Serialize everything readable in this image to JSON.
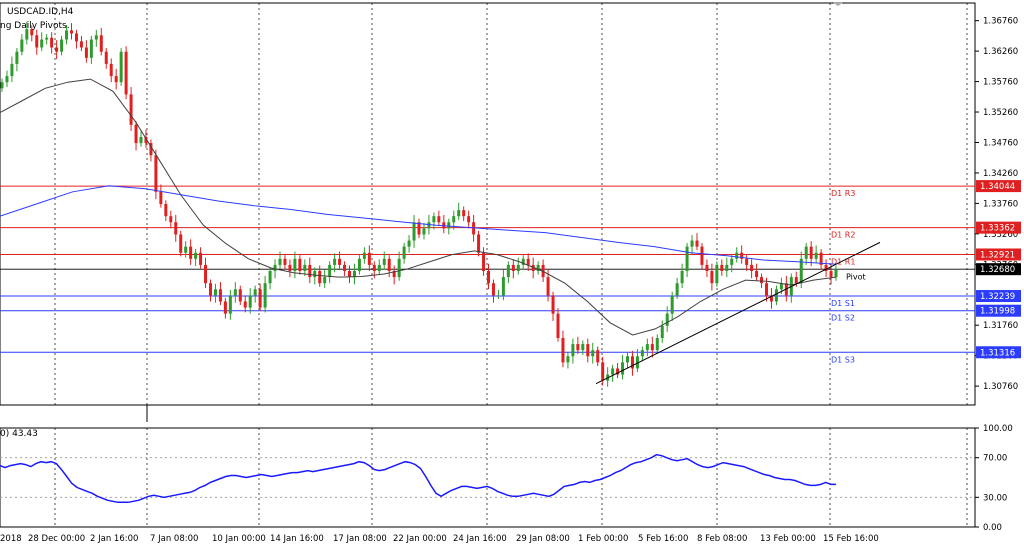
{
  "header": {
    "symbol": "USDCAD.ID,H4",
    "indicator": "ng Daily Pivots.",
    "rsi_label": "0) 43.43"
  },
  "colors": {
    "bull": "#2e9b2e",
    "bear": "#e02020",
    "ma_fast": "#404040",
    "ma_slow": "#2c3cff",
    "resistance": "#e02020",
    "support": "#2c3cff",
    "rsi": "#1a1aff",
    "current_price_bg": "#000000"
  },
  "chart_data": [
    {
      "type": "candlestick",
      "symbol": "USDCAD.ID",
      "timeframe": "H4",
      "y_ticks": [
        "1.36760",
        "1.36260",
        "1.35760",
        "1.35260",
        "1.34760",
        "1.34260",
        "1.33760",
        "1.33260",
        "1.32760",
        "1.31760",
        "1.31260",
        "1.30760"
      ],
      "x_ticks": [
        "2018",
        "28 Dec 00:00",
        "2 Jan 16:00",
        "7 Jan 08:00",
        "10 Jan 00:00",
        "14 Jan 16:00",
        "17 Jan 08:00",
        "22 Jan 00:00",
        "24 Jan 16:00",
        "29 Jan 08:00",
        "1 Feb 00:00",
        "5 Feb 16:00",
        "8 Feb 08:00",
        "13 Feb 00:00",
        "15 Feb 16:00"
      ],
      "y_range": [
        1.3045,
        1.3705
      ],
      "current_price": "1.32680",
      "pivots": [
        {
          "name": "D1 R3",
          "price": 1.34044,
          "label": "1.34044",
          "kind": "resistance"
        },
        {
          "name": "D1 R2",
          "price": 1.33362,
          "label": "1.33362",
          "kind": "resistance"
        },
        {
          "name": "D1 R1",
          "price": 1.32921,
          "label": "1.32921",
          "kind": "resistance"
        },
        {
          "name": "Pivot",
          "price": 1.3256,
          "label": "",
          "kind": "pivot"
        },
        {
          "name": "D1 S1",
          "price": 1.32239,
          "label": "1.32239",
          "kind": "support"
        },
        {
          "name": "D1 S2",
          "price": 1.31998,
          "label": "1.31998",
          "kind": "support"
        },
        {
          "name": "D1 S3",
          "price": 1.31316,
          "label": "1.31316",
          "kind": "support"
        }
      ],
      "series_close": [
        1.3575,
        1.3585,
        1.3605,
        1.3625,
        1.3645,
        1.3662,
        1.3652,
        1.3632,
        1.3645,
        1.3648,
        1.3632,
        1.3625,
        1.3645,
        1.366,
        1.3655,
        1.3642,
        1.3632,
        1.3615,
        1.3645,
        1.3652,
        1.3625,
        1.3605,
        1.3585,
        1.3575,
        1.3625,
        1.3555,
        1.3505,
        1.3475,
        1.3485,
        1.3475,
        1.3455,
        1.3395,
        1.3375,
        1.3355,
        1.3345,
        1.3325,
        1.3295,
        1.3305,
        1.3285,
        1.3295,
        1.3275,
        1.3245,
        1.3225,
        1.3235,
        1.3215,
        1.3195,
        1.3225,
        1.3235,
        1.3215,
        1.3205,
        1.3225,
        1.3235,
        1.3205,
        1.3245,
        1.3265,
        1.3275,
        1.3285,
        1.3275,
        1.3265,
        1.3285,
        1.3265,
        1.3275,
        1.3255,
        1.3265,
        1.3245,
        1.3255,
        1.3275,
        1.3285,
        1.3275,
        1.3265,
        1.3255,
        1.3265,
        1.3285,
        1.3295,
        1.3275,
        1.3265,
        1.3275,
        1.3285,
        1.3265,
        1.3255,
        1.3285,
        1.3305,
        1.3315,
        1.3345,
        1.3325,
        1.3335,
        1.3345,
        1.3355,
        1.3345,
        1.3335,
        1.3345,
        1.3355,
        1.3365,
        1.3355,
        1.3345,
        1.3325,
        1.3295,
        1.3265,
        1.3245,
        1.3225,
        1.3225,
        1.3255,
        1.3275,
        1.3265,
        1.3275,
        1.3285,
        1.3275,
        1.3265,
        1.3275,
        1.3255,
        1.3225,
        1.3195,
        1.3155,
        1.3115,
        1.3125,
        1.3145,
        1.3135,
        1.3145,
        1.3125,
        1.3135,
        1.3115,
        1.3085,
        1.3095,
        1.3105,
        1.3095,
        1.3115,
        1.3125,
        1.3105,
        1.3125,
        1.3135,
        1.3145,
        1.3135,
        1.3155,
        1.3175,
        1.3195,
        1.3225,
        1.3245,
        1.3265,
        1.3305,
        1.3315,
        1.3305,
        1.3275,
        1.3265,
        1.3245,
        1.3275,
        1.3265,
        1.3275,
        1.3285,
        1.3295,
        1.3285,
        1.3275,
        1.3265,
        1.3255,
        1.3245,
        1.3225,
        1.3215,
        1.3235,
        1.3245,
        1.3225,
        1.3255,
        1.3245,
        1.3285,
        1.3305,
        1.3285,
        1.3295,
        1.3275,
        1.3265,
        1.3255,
        1.3268
      ],
      "ma_fast": [
        1.3525,
        1.3545,
        1.3565,
        1.3575,
        1.358,
        1.356,
        1.351,
        1.345,
        1.339,
        1.334,
        1.331,
        1.3285,
        1.327,
        1.3262,
        1.3258,
        1.3255,
        1.3256,
        1.326,
        1.3268,
        1.328,
        1.3292,
        1.3298,
        1.3292,
        1.328,
        1.3265,
        1.3245,
        1.3215,
        1.318,
        1.316,
        1.317,
        1.319,
        1.3215,
        1.3235,
        1.325,
        1.3248,
        1.3242,
        1.325,
        1.3255
      ],
      "ma_slow": [
        1.3355,
        1.3375,
        1.3395,
        1.3405,
        1.34,
        1.339,
        1.338,
        1.3372,
        1.3366,
        1.3358,
        1.3352,
        1.3346,
        1.334,
        1.3336,
        1.3332,
        1.3328,
        1.332,
        1.3312,
        1.3305,
        1.3295,
        1.329,
        1.3283,
        1.328,
        1.3276
      ],
      "trendline": {
        "from": {
          "x": "1 Feb 00:00",
          "y": 1.308
        },
        "to": {
          "x": "15 Feb 16:00",
          "y": 1.3277
        }
      }
    },
    {
      "type": "line",
      "name": "RSI",
      "value_label": "43.43",
      "y_ticks": [
        "100.00",
        "70.00",
        "30.00",
        "0.00"
      ],
      "levels": [
        70,
        30
      ],
      "values": [
        62,
        60,
        62,
        63,
        64,
        63,
        61,
        64,
        66,
        65,
        66,
        64,
        58,
        51,
        44,
        40,
        38,
        36,
        34,
        31,
        29,
        27,
        26,
        25,
        25,
        25,
        26,
        27,
        29,
        31,
        32,
        31,
        30,
        31,
        32,
        33,
        34,
        35,
        37,
        40,
        42,
        45,
        47,
        49,
        51,
        52,
        52,
        51,
        50,
        51,
        52,
        53,
        52,
        51,
        52,
        53,
        54,
        55,
        55,
        56,
        57,
        56,
        57,
        58,
        59,
        60,
        61,
        62,
        63,
        64,
        66,
        65,
        62,
        58,
        57,
        58,
        60,
        62,
        64,
        66,
        65,
        63,
        59,
        51,
        42,
        34,
        31,
        34,
        37,
        39,
        41,
        41,
        40,
        39,
        40,
        41,
        39,
        36,
        34,
        32,
        31,
        31,
        32,
        33,
        34,
        33,
        32,
        31,
        33,
        37,
        41,
        42,
        43,
        45,
        46,
        45,
        47,
        48,
        50,
        52,
        55,
        57,
        60,
        63,
        65,
        66,
        68,
        70,
        73,
        72,
        70,
        68,
        67,
        68,
        69,
        66,
        63,
        61,
        60,
        61,
        63,
        65,
        64,
        63,
        62,
        61,
        59,
        57,
        55,
        53,
        52,
        50,
        49,
        48,
        48,
        47,
        45,
        43,
        42,
        42,
        43,
        45,
        43,
        43
      ],
      "ylim": [
        0,
        100
      ]
    }
  ]
}
